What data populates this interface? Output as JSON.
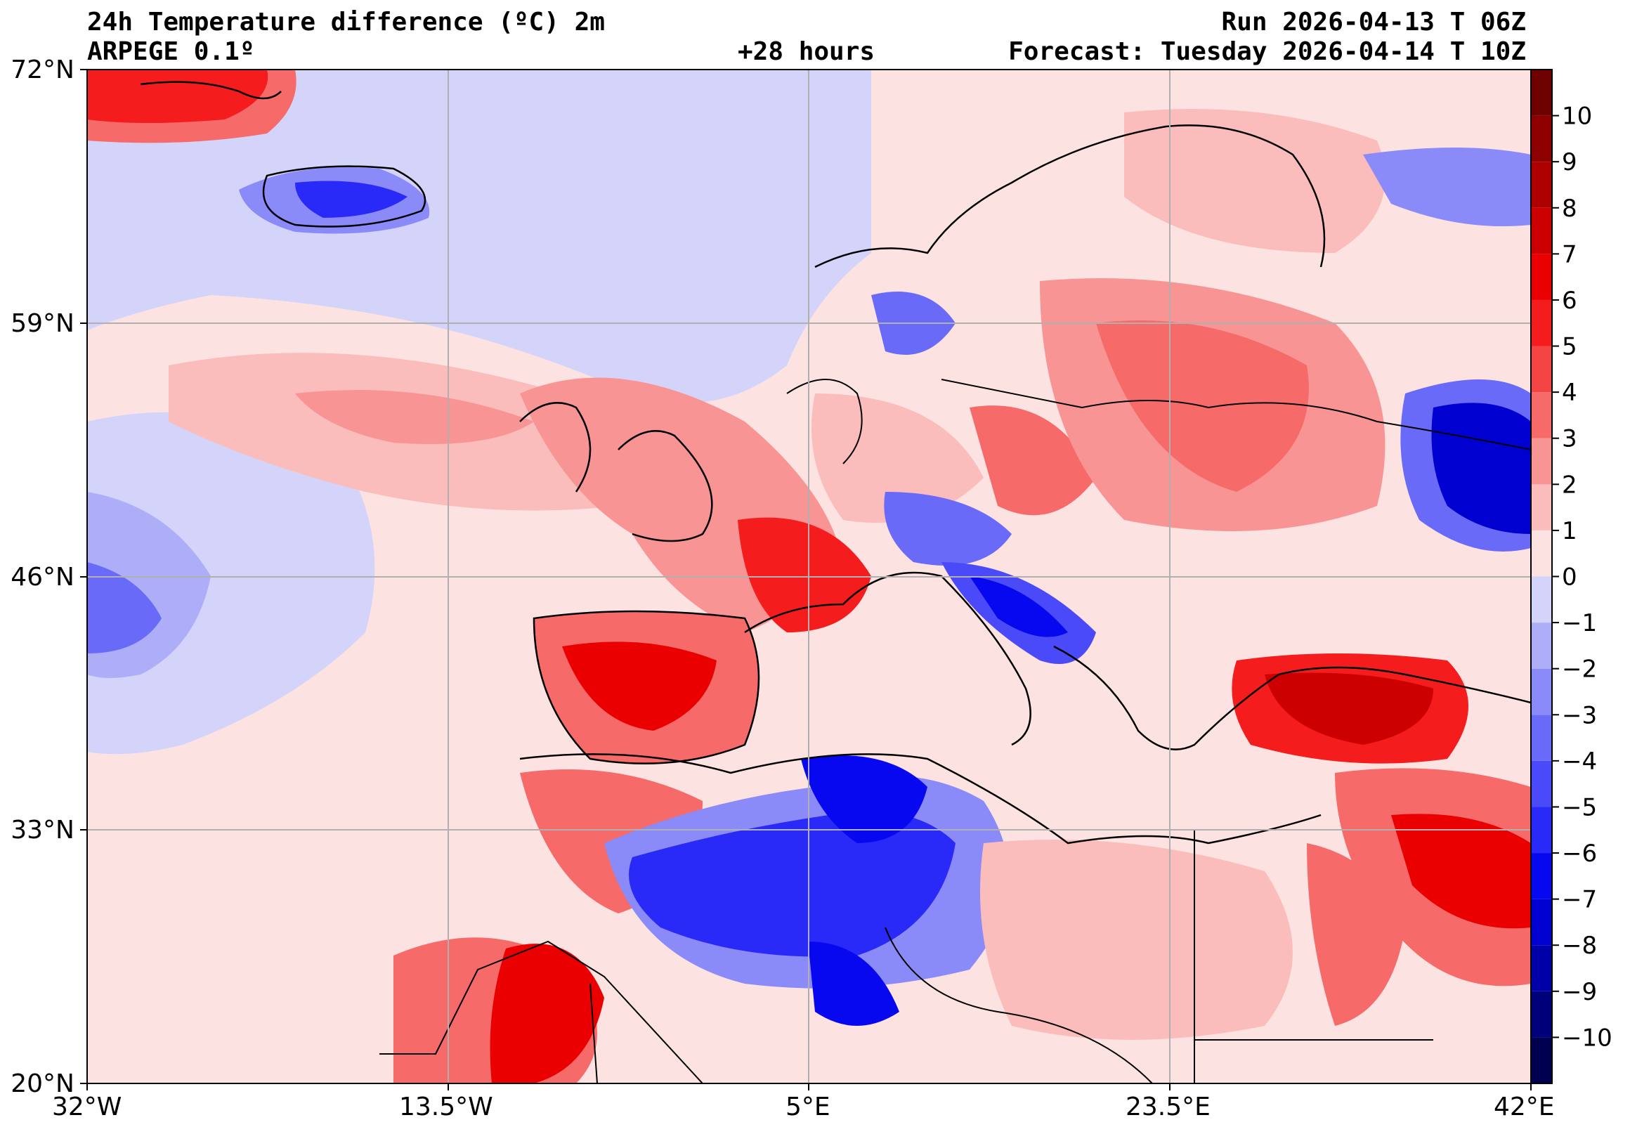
{
  "header": {
    "title": "24h Temperature difference (ºC) 2m",
    "model": "ARPEGE 0.1º",
    "lead": "+28 hours",
    "run": "Run 2026-04-13 T 06Z",
    "forecast": "Forecast: Tuesday 2026-04-14 T 10Z"
  },
  "map": {
    "lat_range": [
      20,
      72
    ],
    "lon_range": [
      -32,
      42
    ],
    "lat_ticks": [
      "72°N",
      "59°N",
      "46°N",
      "33°N",
      "20°N"
    ],
    "lon_ticks": [
      "32°W",
      "13.5°W",
      "5°E",
      "23.5°E",
      "42°E"
    ],
    "grid": true
  },
  "colorbar": {
    "levels": [
      -11,
      -10,
      -9,
      -8,
      -7,
      -6,
      -5,
      -4,
      -3,
      -2,
      -1,
      0,
      1,
      2,
      3,
      4,
      5,
      6,
      7,
      8,
      9,
      10,
      11
    ],
    "colors": [
      "#000050",
      "#00007a",
      "#0000a8",
      "#0000d0",
      "#0808f0",
      "#2a2af8",
      "#4a4af8",
      "#6a6af8",
      "#8a8af8",
      "#aeaef8",
      "#d4d4fa",
      "#fde2e2",
      "#fbbcbc",
      "#f89494",
      "#f66a6a",
      "#f44444",
      "#f41c1c",
      "#ea0000",
      "#cc0000",
      "#ae0000",
      "#8e0000",
      "#6e0000"
    ],
    "labels": [
      "−10",
      "−9",
      "−8",
      "−7",
      "−6",
      "−5",
      "−4",
      "−3",
      "−2",
      "−1",
      "0",
      "1",
      "2",
      "3",
      "4",
      "5",
      "6",
      "7",
      "8",
      "9",
      "10"
    ]
  }
}
